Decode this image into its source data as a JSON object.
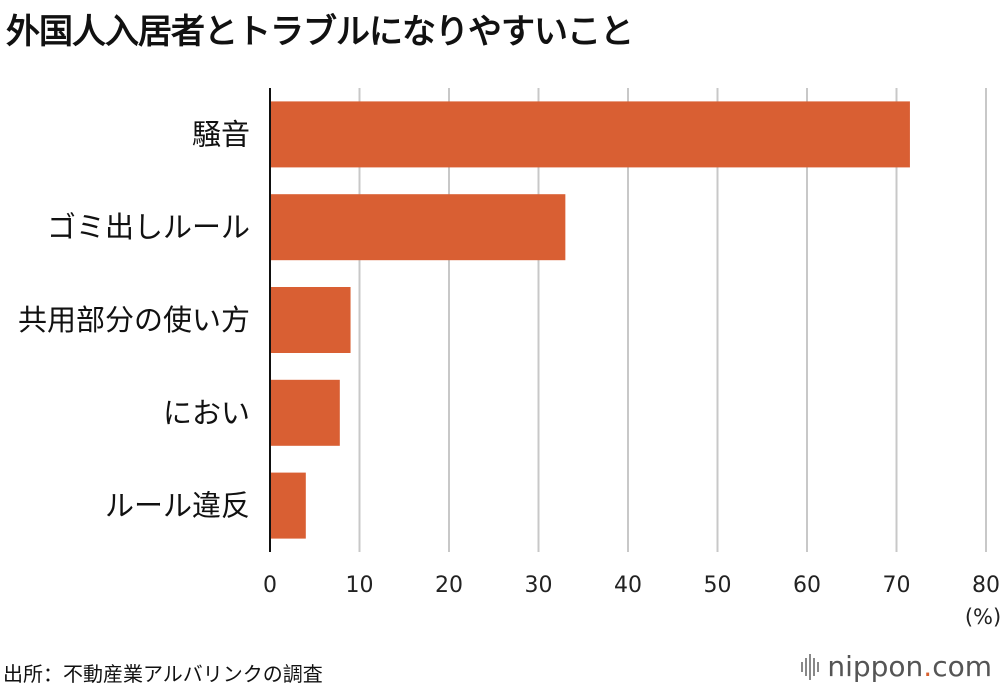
{
  "title": "外国人入居者とトラブルになりやすいこと",
  "chart_data": {
    "type": "bar",
    "orientation": "horizontal",
    "categories": [
      "騒音",
      "ゴミ出しルール",
      "共用部分の使い方",
      "におい",
      "ルール違反"
    ],
    "values": [
      71.5,
      33,
      9,
      7.8,
      4
    ],
    "xlim": [
      0,
      80
    ],
    "xticks": [
      "0",
      "10",
      "20",
      "30",
      "40",
      "50",
      "60",
      "70",
      "80"
    ],
    "xunit": "(%)",
    "grid": true,
    "bar_color": "#d95f33"
  },
  "source": "出所：不動産業アルバリンクの調査",
  "brand": {
    "name": "nippon",
    "dot": ".",
    "tld": "com",
    "accent": "#d8602f"
  }
}
